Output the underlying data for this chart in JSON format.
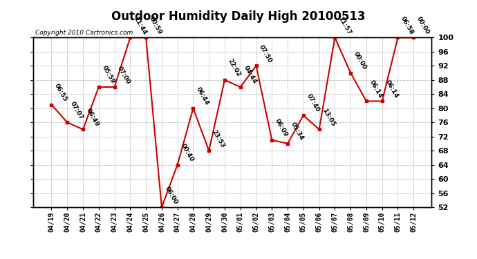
{
  "title": "Outdoor Humidity Daily High 20100513",
  "copyright": "Copyright 2010 Cartronics.com",
  "categories": [
    "04/19",
    "04/20",
    "04/21",
    "04/22",
    "04/23",
    "04/24",
    "04/25",
    "04/26",
    "04/27",
    "04/28",
    "04/29",
    "04/30",
    "05/01",
    "05/02",
    "05/03",
    "05/04",
    "05/05",
    "05/06",
    "05/07",
    "05/08",
    "05/09",
    "05/10",
    "05/11",
    "05/12"
  ],
  "values": [
    81,
    76,
    74,
    86,
    86,
    100,
    100,
    52,
    64,
    80,
    68,
    88,
    86,
    92,
    71,
    70,
    78,
    74,
    100,
    90,
    82,
    82,
    100,
    100
  ],
  "labels": [
    "06:55",
    "07:07",
    "06:49",
    "05:59",
    "07:00",
    "11:44",
    "00:59",
    "06:00",
    "00:40",
    "06:44",
    "23:53",
    "22:02",
    "04:44",
    "07:50",
    "06:09",
    "05:34",
    "07:40",
    "13:05",
    "11:57",
    "00:00",
    "06:14",
    "06:14",
    "06:58",
    "00:00"
  ],
  "line_color": "#cc0000",
  "marker_color": "#cc0000",
  "bg_color": "#ffffff",
  "grid_color": "#bbbbbb",
  "ylim_min": 52,
  "ylim_max": 100,
  "yticks": [
    52,
    56,
    60,
    64,
    68,
    72,
    76,
    80,
    84,
    88,
    92,
    96,
    100
  ],
  "title_fontsize": 12,
  "label_fontsize": 6.5,
  "xtick_fontsize": 7,
  "ytick_fontsize": 8,
  "copyright_fontsize": 6.5
}
